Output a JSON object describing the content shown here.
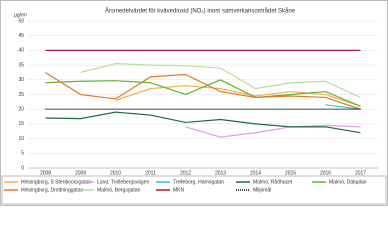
{
  "chart_data": {
    "type": "line",
    "title": "Årsmedelvärdet för kvävedioxid (NO₂) inom samverkansområdet Skåne",
    "y_unit": "µg/m³",
    "categories": [
      "2008",
      "2009",
      "2010",
      "2011",
      "2012",
      "2013",
      "2014",
      "2015",
      "2016",
      "2017"
    ],
    "ylim": [
      0,
      50
    ],
    "yticks": [
      0,
      5,
      10,
      15,
      20,
      25,
      30,
      35,
      40,
      45,
      50
    ],
    "grid": true,
    "series": [
      {
        "name": "Helsingborg, S Stenbocksgatan",
        "color": "#f7b14a",
        "values": [
          null,
          null,
          23,
          27,
          28,
          27,
          24.5,
          26,
          25,
          21
        ]
      },
      {
        "name": "Lund, Trollebergsvägen",
        "color": "#dba3e0",
        "values": [
          null,
          null,
          null,
          null,
          14,
          10.5,
          12,
          14,
          14.5,
          14
        ]
      },
      {
        "name": "Trelleborg, Hamngatan",
        "color": "#1ec8e0",
        "values": [
          null,
          null,
          null,
          null,
          null,
          null,
          null,
          null,
          21.5,
          20
        ]
      },
      {
        "name": "Malmö, Rådhuset",
        "color": "#1a6b3c",
        "values": [
          17,
          16.8,
          19,
          18,
          15.5,
          16.5,
          15,
          14,
          14,
          12
        ]
      },
      {
        "name": "Malmö, Dalaplan",
        "color": "#5cb531",
        "values": [
          29,
          29.5,
          29.7,
          29,
          25,
          30,
          24,
          25,
          26,
          21
        ]
      },
      {
        "name": "Helsingborg, Drottninggatan",
        "color": "#e87722",
        "values": [
          32.5,
          25,
          23.5,
          31,
          31.8,
          26,
          24,
          24.5,
          24,
          20
        ]
      },
      {
        "name": "Malmö, Bergsgatan",
        "color": "#b7de9a",
        "values": [
          null,
          32.5,
          35.5,
          35,
          34.8,
          34,
          27,
          29,
          29.5,
          24
        ]
      },
      {
        "name": "MKN",
        "color": "#b0183c",
        "values": [
          40,
          40,
          40,
          40,
          40,
          40,
          40,
          40,
          40,
          40
        ]
      },
      {
        "name": "Miljömål",
        "color": "#000000",
        "style": "dotted",
        "values": [
          20,
          20,
          20,
          20,
          20,
          20,
          20,
          20,
          20,
          20
        ]
      }
    ]
  }
}
